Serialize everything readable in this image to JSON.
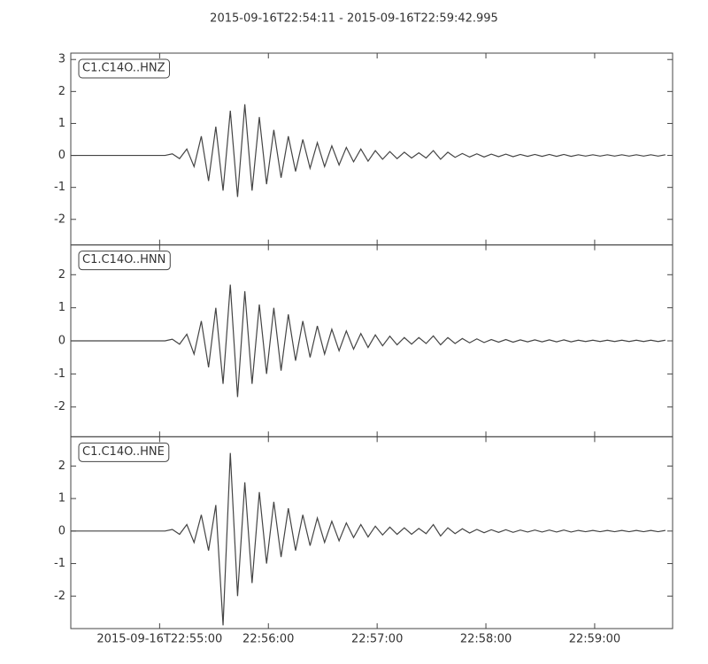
{
  "chart_data": {
    "type": "line",
    "layout": "stacked",
    "title": "2015-09-16T22:54:11  -  2015-09-16T22:59:42.995",
    "color": "#444444",
    "xlim": [
      "2015-09-16T22:54:11",
      "2015-09-16T22:59:42.995"
    ],
    "xticks": [
      {
        "value": "2015-09-16T22:55:00",
        "label": "2015-09-16T22:55:00"
      },
      {
        "value": "2015-09-16T22:56:00",
        "label": "22:56:00"
      },
      {
        "value": "2015-09-16T22:57:00",
        "label": "22:57:00"
      },
      {
        "value": "2015-09-16T22:58:00",
        "label": "22:58:00"
      },
      {
        "value": "2015-09-16T22:59:00",
        "label": "22:59:00"
      }
    ],
    "x": [
      "2015-09-16T22:54:11",
      "2015-09-16T22:54:15",
      "2015-09-16T22:54:19",
      "2015-09-16T22:54:23",
      "2015-09-16T22:54:27",
      "2015-09-16T22:54:31",
      "2015-09-16T22:54:35",
      "2015-09-16T22:54:39",
      "2015-09-16T22:54:43",
      "2015-09-16T22:54:47",
      "2015-09-16T22:54:51",
      "2015-09-16T22:54:55",
      "2015-09-16T22:54:59",
      "2015-09-16T22:55:03",
      "2015-09-16T22:55:07",
      "2015-09-16T22:55:11",
      "2015-09-16T22:55:15",
      "2015-09-16T22:55:19",
      "2015-09-16T22:55:23",
      "2015-09-16T22:55:27",
      "2015-09-16T22:55:31",
      "2015-09-16T22:55:35",
      "2015-09-16T22:55:39",
      "2015-09-16T22:55:43",
      "2015-09-16T22:55:47",
      "2015-09-16T22:55:51",
      "2015-09-16T22:55:55",
      "2015-09-16T22:55:59",
      "2015-09-16T22:56:03",
      "2015-09-16T22:56:07",
      "2015-09-16T22:56:11",
      "2015-09-16T22:56:15",
      "2015-09-16T22:56:19",
      "2015-09-16T22:56:23",
      "2015-09-16T22:56:27",
      "2015-09-16T22:56:31",
      "2015-09-16T22:56:35",
      "2015-09-16T22:56:39",
      "2015-09-16T22:56:43",
      "2015-09-16T22:56:47",
      "2015-09-16T22:56:51",
      "2015-09-16T22:56:55",
      "2015-09-16T22:56:59",
      "2015-09-16T22:57:03",
      "2015-09-16T22:57:07",
      "2015-09-16T22:57:11",
      "2015-09-16T22:57:15",
      "2015-09-16T22:57:19",
      "2015-09-16T22:57:23",
      "2015-09-16T22:57:27",
      "2015-09-16T22:57:31",
      "2015-09-16T22:57:35",
      "2015-09-16T22:57:39",
      "2015-09-16T22:57:43",
      "2015-09-16T22:57:47",
      "2015-09-16T22:57:51",
      "2015-09-16T22:57:55",
      "2015-09-16T22:57:59",
      "2015-09-16T22:58:03",
      "2015-09-16T22:58:07",
      "2015-09-16T22:58:11",
      "2015-09-16T22:58:15",
      "2015-09-16T22:58:19",
      "2015-09-16T22:58:23",
      "2015-09-16T22:58:27",
      "2015-09-16T22:58:31",
      "2015-09-16T22:58:35",
      "2015-09-16T22:58:39",
      "2015-09-16T22:58:43",
      "2015-09-16T22:58:47",
      "2015-09-16T22:58:51",
      "2015-09-16T22:58:55",
      "2015-09-16T22:58:59",
      "2015-09-16T22:59:03",
      "2015-09-16T22:59:07",
      "2015-09-16T22:59:11",
      "2015-09-16T22:59:15",
      "2015-09-16T22:59:19",
      "2015-09-16T22:59:23",
      "2015-09-16T22:59:27",
      "2015-09-16T22:59:31",
      "2015-09-16T22:59:35",
      "2015-09-16T22:59:39"
    ],
    "series": [
      {
        "name": "C1.C14O..HNZ",
        "ylim": [
          -2.8,
          3.2
        ],
        "yticks": [
          -2,
          -1,
          0,
          1,
          2,
          3
        ],
        "values": [
          0,
          0,
          0,
          0,
          0,
          0,
          0,
          0,
          0,
          0,
          0,
          0,
          0,
          0,
          0.05,
          -0.1,
          0.2,
          -0.35,
          0.6,
          -0.8,
          0.9,
          -1.1,
          1.4,
          -1.3,
          1.6,
          -1.1,
          1.2,
          -0.9,
          0.8,
          -0.7,
          0.6,
          -0.5,
          0.5,
          -0.4,
          0.4,
          -0.35,
          0.3,
          -0.3,
          0.25,
          -0.2,
          0.2,
          -0.18,
          0.15,
          -0.12,
          0.12,
          -0.1,
          0.1,
          -0.08,
          0.08,
          -0.08,
          0.15,
          -0.12,
          0.1,
          -0.06,
          0.06,
          -0.05,
          0.05,
          -0.05,
          0.04,
          -0.04,
          0.04,
          -0.04,
          0.03,
          -0.03,
          0.03,
          -0.03,
          0.03,
          -0.03,
          0.03,
          -0.03,
          0.02,
          -0.02,
          0.02,
          -0.02,
          0.02,
          -0.02,
          0.02,
          -0.02,
          0.02,
          -0.02,
          0.02,
          -0.02,
          0.02
        ]
      },
      {
        "name": "C1.C14O..HNN",
        "ylim": [
          -2.9,
          2.9
        ],
        "yticks": [
          -2,
          -1,
          0,
          1,
          2
        ],
        "values": [
          0,
          0,
          0,
          0,
          0,
          0,
          0,
          0,
          0,
          0,
          0,
          0,
          0,
          0,
          0.05,
          -0.1,
          0.2,
          -0.4,
          0.6,
          -0.8,
          1.0,
          -1.3,
          1.7,
          -1.7,
          1.5,
          -1.3,
          1.1,
          -1.0,
          1.0,
          -0.9,
          0.8,
          -0.6,
          0.6,
          -0.5,
          0.45,
          -0.4,
          0.35,
          -0.3,
          0.3,
          -0.25,
          0.22,
          -0.2,
          0.18,
          -0.15,
          0.14,
          -0.12,
          0.1,
          -0.1,
          0.1,
          -0.08,
          0.15,
          -0.12,
          0.1,
          -0.08,
          0.07,
          -0.06,
          0.06,
          -0.05,
          0.04,
          -0.04,
          0.04,
          -0.04,
          0.03,
          -0.03,
          0.03,
          -0.03,
          0.03,
          -0.03,
          0.03,
          -0.03,
          0.02,
          -0.02,
          0.02,
          -0.02,
          0.02,
          -0.02,
          0.02,
          -0.02,
          0.02,
          -0.02,
          0.02,
          -0.02,
          0.02
        ]
      },
      {
        "name": "C1.C14O..HNE",
        "ylim": [
          -3.0,
          2.9
        ],
        "yticks": [
          -2,
          -1,
          0,
          1,
          2
        ],
        "values": [
          0,
          0,
          0,
          0,
          0,
          0,
          0,
          0,
          0,
          0,
          0,
          0,
          0,
          0,
          0.05,
          -0.1,
          0.2,
          -0.35,
          0.5,
          -0.6,
          0.8,
          -2.9,
          2.4,
          -2.0,
          1.5,
          -1.6,
          1.2,
          -1.0,
          0.9,
          -0.8,
          0.7,
          -0.6,
          0.5,
          -0.45,
          0.4,
          -0.35,
          0.3,
          -0.3,
          0.25,
          -0.2,
          0.2,
          -0.18,
          0.15,
          -0.12,
          0.12,
          -0.1,
          0.1,
          -0.1,
          0.08,
          -0.08,
          0.2,
          -0.15,
          0.1,
          -0.08,
          0.07,
          -0.06,
          0.05,
          -0.05,
          0.04,
          -0.04,
          0.04,
          -0.04,
          0.03,
          -0.03,
          0.03,
          -0.03,
          0.03,
          -0.03,
          0.03,
          -0.03,
          0.02,
          -0.02,
          0.02,
          -0.02,
          0.02,
          -0.02,
          0.02,
          -0.02,
          0.02,
          -0.02,
          0.02,
          -0.02,
          0.02
        ]
      }
    ]
  }
}
